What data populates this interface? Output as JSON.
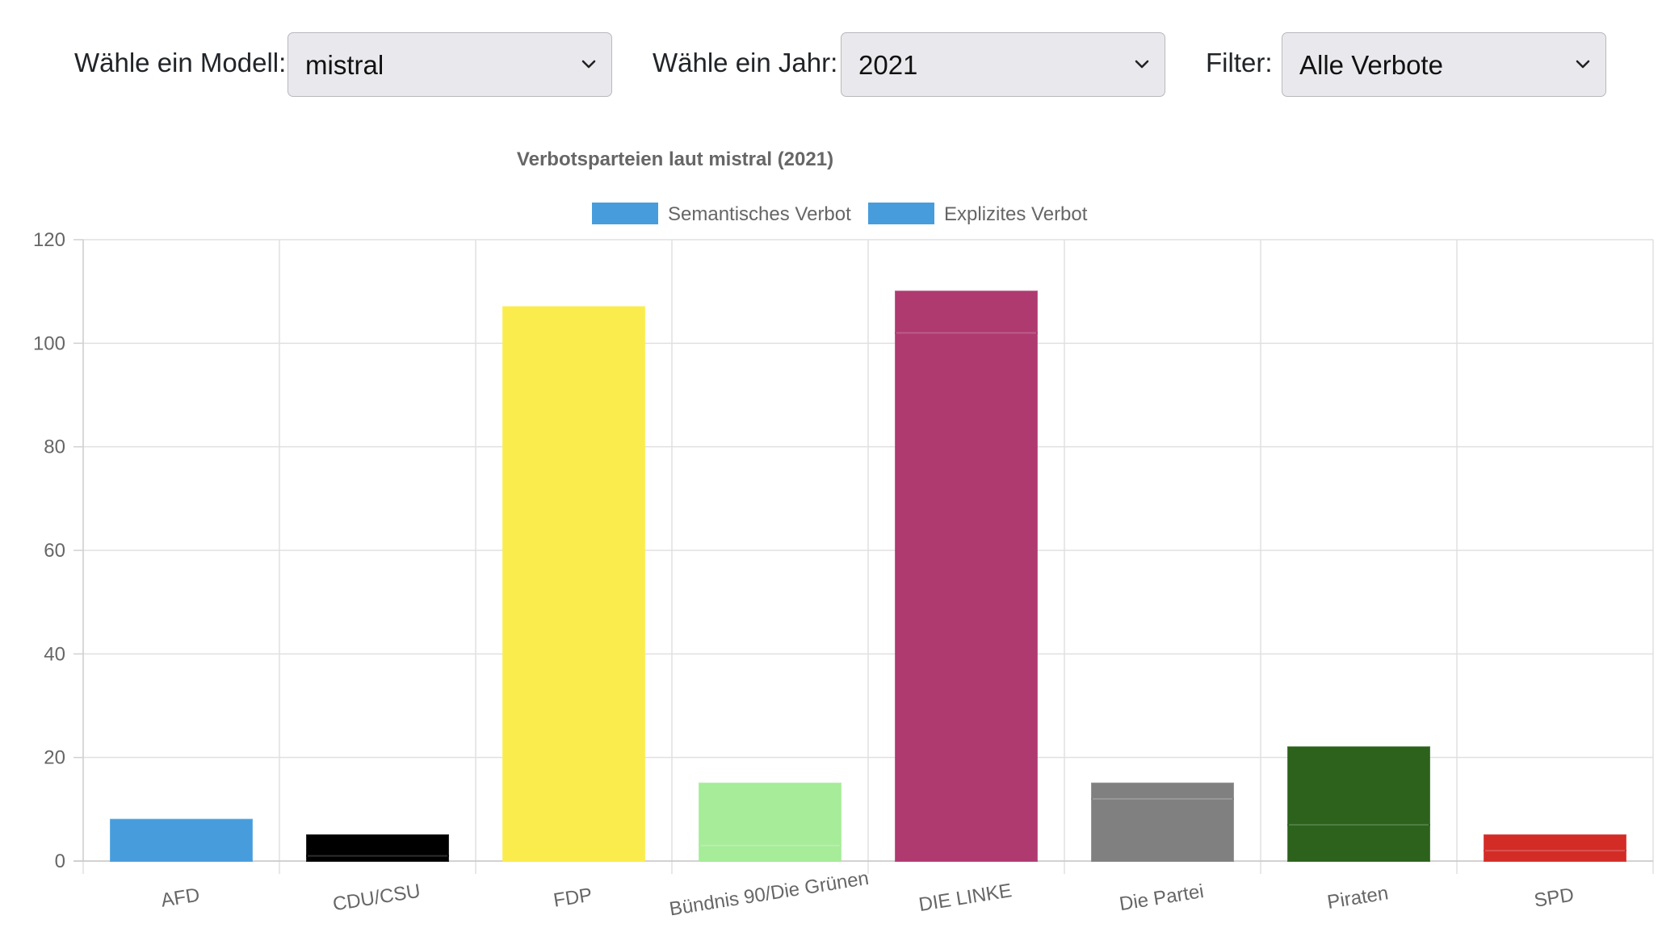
{
  "controls": {
    "model_label": "Wähle ein Modell:",
    "model_value": "mistral",
    "year_label": "Wähle ein Jahr:",
    "year_value": "2021",
    "filter_label": "Filter:",
    "filter_value": "Alle Verbote"
  },
  "chart_data": {
    "type": "bar",
    "stacked": true,
    "title": "Verbotsparteien laut mistral (2021)",
    "legend_position": "top",
    "categories": [
      "AFD",
      "CDU/CSU",
      "FDP",
      "Bündnis 90/Die Grünen",
      "DIE LINKE",
      "Die Partei",
      "Piraten",
      "SPD"
    ],
    "bar_colors": [
      "#479ddc",
      "#000000",
      "#fbec4e",
      "#a6ec99",
      "#ae3a70",
      "#808080",
      "#2c621c",
      "#d32c27"
    ],
    "series": [
      {
        "name": "Semantisches Verbot",
        "values": [
          8,
          1,
          107,
          3,
          102,
          12,
          7,
          2
        ]
      },
      {
        "name": "Explizites Verbot",
        "values": [
          0,
          4,
          0,
          12,
          8,
          3,
          15,
          3
        ]
      }
    ],
    "legend_color": "#479ddc",
    "ylim": [
      0,
      120
    ],
    "yticks": [
      0,
      20,
      40,
      60,
      80,
      100,
      120
    ],
    "grid": true
  }
}
